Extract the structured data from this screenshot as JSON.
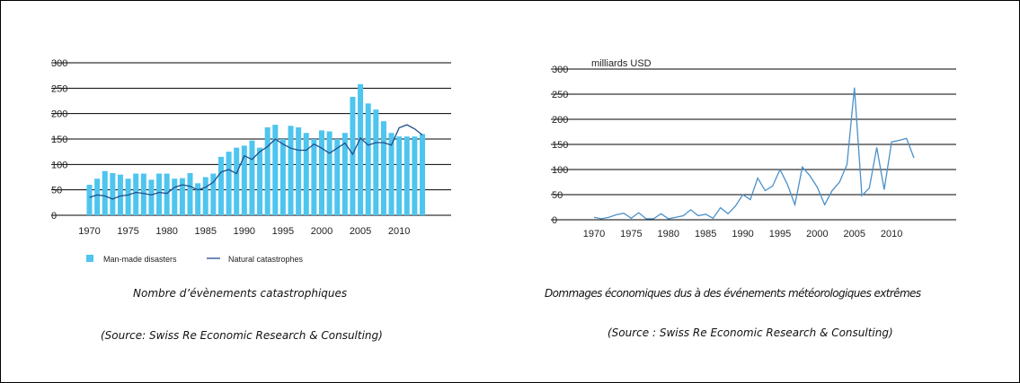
{
  "chart_data": [
    {
      "type": "bar",
      "x": [
        1970,
        1971,
        1972,
        1973,
        1974,
        1975,
        1976,
        1977,
        1978,
        1979,
        1980,
        1981,
        1982,
        1983,
        1984,
        1985,
        1986,
        1987,
        1988,
        1989,
        1990,
        1991,
        1992,
        1993,
        1994,
        1995,
        1996,
        1997,
        1998,
        1999,
        2000,
        2001,
        2002,
        2003,
        2004,
        2005,
        2006,
        2007,
        2008,
        2009,
        2010,
        2011,
        2012,
        2013
      ],
      "series": [
        {
          "name": "Man-made disasters",
          "type": "bar",
          "color": "#4ec5ee",
          "values": [
            60,
            72,
            87,
            83,
            80,
            72,
            82,
            82,
            70,
            82,
            82,
            72,
            73,
            83,
            63,
            75,
            82,
            115,
            125,
            133,
            137,
            147,
            133,
            173,
            178,
            150,
            176,
            173,
            162,
            150,
            167,
            165,
            150,
            162,
            233,
            258,
            220,
            208,
            185,
            162,
            155,
            155,
            155,
            160
          ]
        },
        {
          "name": "Natural catastrophes",
          "type": "line",
          "color": "#1f4f8c",
          "values": [
            35,
            40,
            38,
            32,
            38,
            40,
            45,
            43,
            40,
            45,
            43,
            55,
            60,
            57,
            50,
            55,
            65,
            85,
            90,
            82,
            117,
            110,
            125,
            135,
            150,
            140,
            132,
            128,
            128,
            140,
            132,
            122,
            132,
            142,
            120,
            152,
            138,
            143,
            143,
            138,
            172,
            178,
            170,
            158
          ]
        }
      ],
      "ylim": [
        0,
        300
      ],
      "yticks": [
        0,
        50,
        100,
        150,
        200,
        250,
        300
      ],
      "xticks": [
        1970,
        1975,
        1980,
        1985,
        1990,
        1995,
        2000,
        2005,
        2010
      ],
      "grid": true,
      "legend": "bottom-left"
    },
    {
      "type": "line",
      "ylabel": "milliards USD",
      "x": [
        1970,
        1971,
        1972,
        1973,
        1974,
        1975,
        1976,
        1977,
        1978,
        1979,
        1980,
        1981,
        1982,
        1983,
        1984,
        1985,
        1986,
        1987,
        1988,
        1989,
        1990,
        1991,
        1992,
        1993,
        1994,
        1995,
        1996,
        1997,
        1998,
        1999,
        2000,
        2001,
        2002,
        2003,
        2004,
        2005,
        2006,
        2007,
        2008,
        2009,
        2010,
        2011,
        2012,
        2013
      ],
      "series": [
        {
          "color": "#4a90c8",
          "values": [
            5,
            2,
            5,
            10,
            13,
            3,
            14,
            2,
            2,
            12,
            2,
            5,
            8,
            20,
            8,
            11,
            3,
            24,
            12,
            27,
            50,
            40,
            83,
            58,
            67,
            100,
            70,
            30,
            105,
            88,
            65,
            30,
            58,
            75,
            110,
            263,
            48,
            63,
            144,
            60,
            155,
            158,
            162,
            123
          ]
        }
      ],
      "ylim": [
        0,
        300
      ],
      "yticks": [
        0,
        50,
        100,
        150,
        200,
        250,
        300
      ],
      "xticks": [
        1970,
        1975,
        1980,
        1985,
        1990,
        1995,
        2000,
        2005,
        2010
      ],
      "grid": true
    }
  ],
  "captions": {
    "left_title": "Nombre d’évènements catastrophiques",
    "left_source": "(Source: Swiss Re Economic Research & Consulting)",
    "right_title": "Dommages économiques dus à des événements météorologiques extrêmes",
    "right_source": "(Source : Swiss Re Economic Research & Consulting)"
  }
}
